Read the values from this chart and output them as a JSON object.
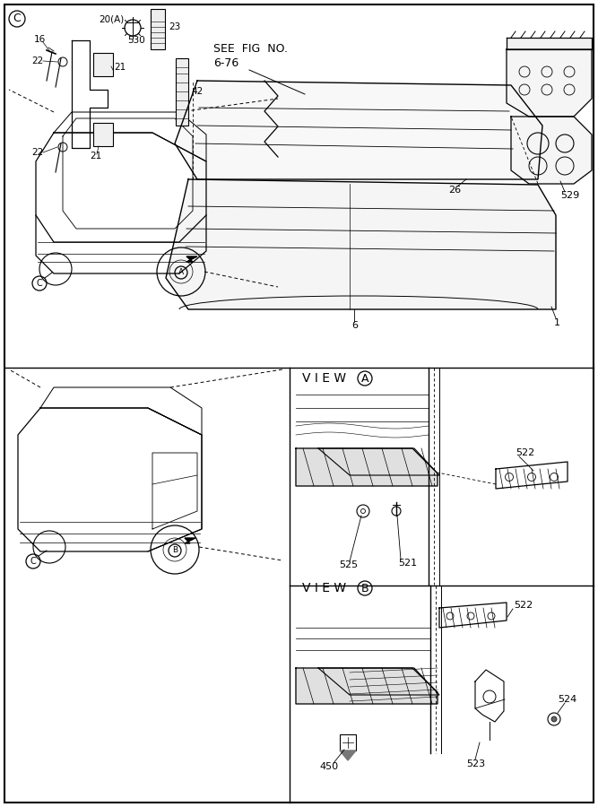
{
  "bg_color": "#ffffff",
  "line_color": "#000000",
  "fig_width": 6.67,
  "fig_height": 9.0,
  "view_A_label": "V I E W",
  "view_B_label": "V I E W",
  "part_labels": {
    "522": "522",
    "525": "525",
    "521": "521",
    "450": "450",
    "523": "523",
    "524": "524",
    "16": "16",
    "20A": "20(A)",
    "23": "23",
    "530": "530",
    "21": "21",
    "22": "22",
    "42": "42",
    "see_fig": "SEE FIG NO.\n6-76",
    "529": "529",
    "26": "26",
    "6": "6",
    "1": "1"
  }
}
